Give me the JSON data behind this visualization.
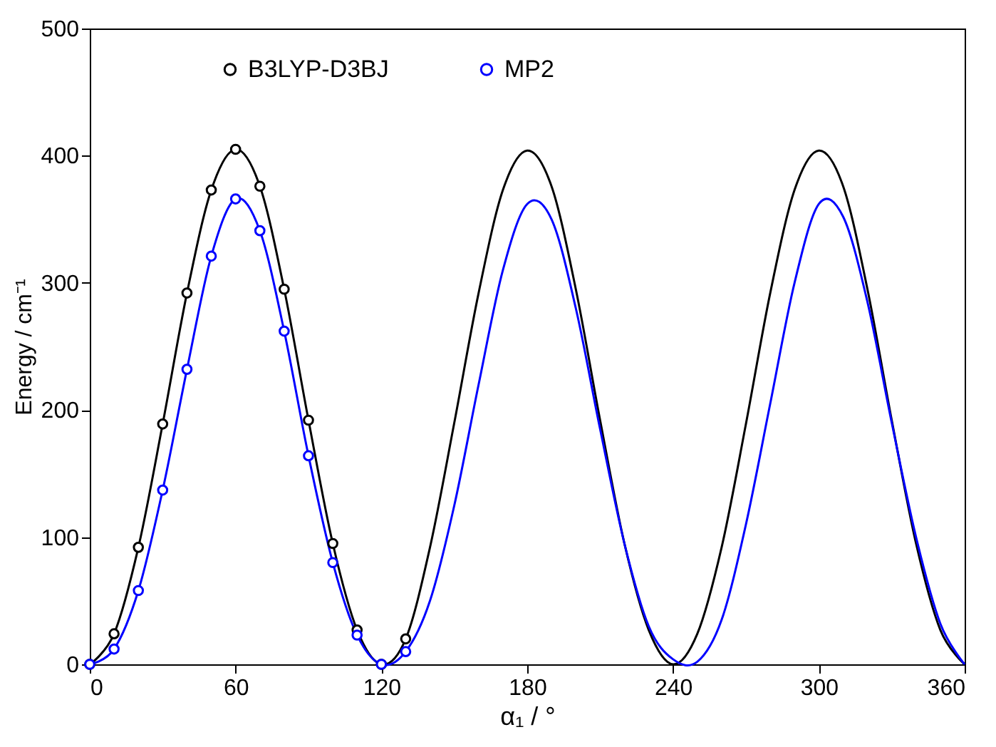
{
  "chart_data": {
    "type": "line",
    "xlabel": "α₁ / °",
    "ylabel": "Energy / cm⁻¹",
    "xlim": [
      0,
      360
    ],
    "ylim": [
      0,
      500
    ],
    "xticks": [
      0,
      60,
      120,
      180,
      240,
      300,
      360
    ],
    "yticks": [
      0,
      100,
      200,
      300,
      400,
      500
    ],
    "grid": false,
    "legend": "top",
    "marker": "circle",
    "line_style": "solid",
    "series": [
      {
        "name": "B3LYP-D3BJ",
        "color": "#000000",
        "type": "scatter",
        "x": [
          0,
          10,
          20,
          30,
          40,
          50,
          60,
          70,
          80,
          90,
          100,
          110,
          120,
          130
        ],
        "values": [
          0,
          24,
          92,
          189,
          292,
          373,
          405,
          376,
          295,
          192,
          95,
          27,
          0,
          20
        ]
      },
      {
        "name": "MP2",
        "color": "#0000ff",
        "type": "scatter",
        "x": [
          0,
          10,
          20,
          30,
          40,
          50,
          60,
          70,
          80,
          90,
          100,
          110,
          120,
          130
        ],
        "values": [
          0,
          12,
          58,
          137,
          232,
          321,
          366,
          341,
          262,
          164,
          80,
          23,
          0,
          10
        ]
      },
      {
        "color": "#000000",
        "marker": "none",
        "x": [
          0,
          10,
          20,
          30,
          40,
          50,
          60,
          70,
          80,
          90,
          100,
          110,
          120,
          130,
          140,
          150,
          160,
          170,
          180,
          190,
          200,
          210,
          220,
          230,
          240,
          250,
          260,
          270,
          280,
          290,
          300,
          310,
          320,
          330,
          340,
          350,
          360
        ],
        "values": [
          0,
          24,
          92,
          189,
          292,
          373,
          405,
          376,
          295,
          192,
          95,
          27,
          0,
          20,
          92,
          190,
          292,
          373,
          404,
          376,
          295,
          192,
          95,
          27,
          0,
          24,
          92,
          189,
          292,
          373,
          404,
          376,
          295,
          192,
          95,
          27,
          0
        ]
      },
      {
        "color": "#0000ff",
        "marker": "none",
        "x": [
          0,
          10,
          20,
          30,
          40,
          50,
          60,
          70,
          80,
          90,
          100,
          110,
          120,
          130,
          140,
          150,
          160,
          170,
          180,
          190,
          200,
          210,
          220,
          230,
          240,
          250,
          260,
          270,
          280,
          290,
          300,
          310,
          320,
          330,
          340,
          350,
          360
        ],
        "values": [
          0,
          12,
          58,
          137,
          232,
          321,
          366,
          341,
          262,
          164,
          80,
          23,
          0,
          10,
          50,
          125,
          220,
          310,
          362,
          350,
          280,
          185,
          95,
          30,
          4,
          2,
          35,
          110,
          205,
          300,
          362,
          352,
          285,
          190,
          100,
          32,
          0
        ]
      }
    ]
  }
}
